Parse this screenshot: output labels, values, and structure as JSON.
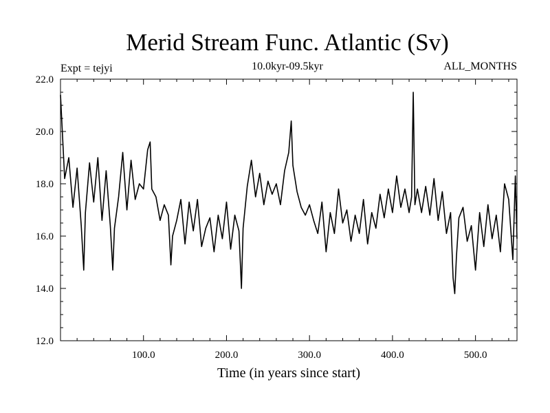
{
  "chart_data": {
    "type": "line",
    "title": "Merid Stream Func. Atlantic (Sv)",
    "subtitle": "10.0kyr-09.5kyr",
    "left_label": "Expt = tejyi",
    "right_label": "ALL_MONTHS",
    "xlabel": "Time (in years since start)",
    "ylabel": "",
    "xlim": [
      0,
      550
    ],
    "ylim": [
      12,
      22
    ],
    "x_ticks": [
      100,
      200,
      300,
      400,
      500
    ],
    "x_tick_labels": [
      "100.0",
      "200.0",
      "300.0",
      "400.0",
      "500.0"
    ],
    "y_ticks": [
      12,
      14,
      16,
      18,
      20,
      22
    ],
    "y_tick_labels": [
      "12.0",
      "14.0",
      "16.0",
      "18.0",
      "20.0",
      "22.0"
    ],
    "grid": false,
    "line_color": "#000000",
    "series": [
      {
        "x": [
          0,
          5,
          10,
          15,
          20,
          25,
          28,
          30,
          35,
          40,
          45,
          50,
          55,
          60,
          63,
          65,
          70,
          75,
          80,
          85,
          90,
          95,
          100,
          105,
          108,
          110,
          115,
          120,
          125,
          130,
          133,
          135,
          140,
          145,
          150,
          155,
          160,
          165,
          170,
          175,
          180,
          185,
          190,
          195,
          200,
          205,
          210,
          215,
          218,
          220,
          225,
          230,
          235,
          240,
          245,
          250,
          255,
          260,
          265,
          270,
          275,
          278,
          280,
          285,
          290,
          295,
          300,
          305,
          310,
          315,
          320,
          325,
          330,
          335,
          340,
          345,
          350,
          355,
          360,
          365,
          370,
          375,
          380,
          385,
          390,
          395,
          400,
          405,
          410,
          415,
          420,
          423,
          425,
          427,
          430,
          435,
          440,
          445,
          450,
          455,
          460,
          465,
          470,
          473,
          475,
          477,
          480,
          485,
          490,
          495,
          500,
          505,
          510,
          515,
          520,
          525,
          530,
          535,
          540,
          545,
          548,
          550
        ],
        "y": [
          21.4,
          18.2,
          19.0,
          17.1,
          18.6,
          16.4,
          14.7,
          16.9,
          18.8,
          17.3,
          19.0,
          16.6,
          18.5,
          16.4,
          14.7,
          16.3,
          17.5,
          19.2,
          17.0,
          18.9,
          17.4,
          18.0,
          17.8,
          19.3,
          19.6,
          17.8,
          17.5,
          16.6,
          17.2,
          16.8,
          14.9,
          16.0,
          16.6,
          17.4,
          15.7,
          17.3,
          16.2,
          17.4,
          15.6,
          16.3,
          16.7,
          15.4,
          16.8,
          15.9,
          17.3,
          15.5,
          16.8,
          16.2,
          14.0,
          16.3,
          17.9,
          18.9,
          17.5,
          18.4,
          17.2,
          18.1,
          17.6,
          18.0,
          17.2,
          18.5,
          19.2,
          20.4,
          18.7,
          17.7,
          17.1,
          16.8,
          17.2,
          16.6,
          16.1,
          17.3,
          15.4,
          16.9,
          16.1,
          17.8,
          16.5,
          17.0,
          15.8,
          16.8,
          16.1,
          17.4,
          15.7,
          16.9,
          16.3,
          17.6,
          16.7,
          17.8,
          16.9,
          18.3,
          17.1,
          17.8,
          16.9,
          17.5,
          21.5,
          17.2,
          17.8,
          16.9,
          17.9,
          16.8,
          18.2,
          16.6,
          17.7,
          16.1,
          16.9,
          14.4,
          13.8,
          15.2,
          16.7,
          17.1,
          15.8,
          16.4,
          14.7,
          16.9,
          15.6,
          17.2,
          15.9,
          16.8,
          15.4,
          18.0,
          17.4,
          15.1,
          18.3,
          15.9
        ]
      }
    ]
  }
}
